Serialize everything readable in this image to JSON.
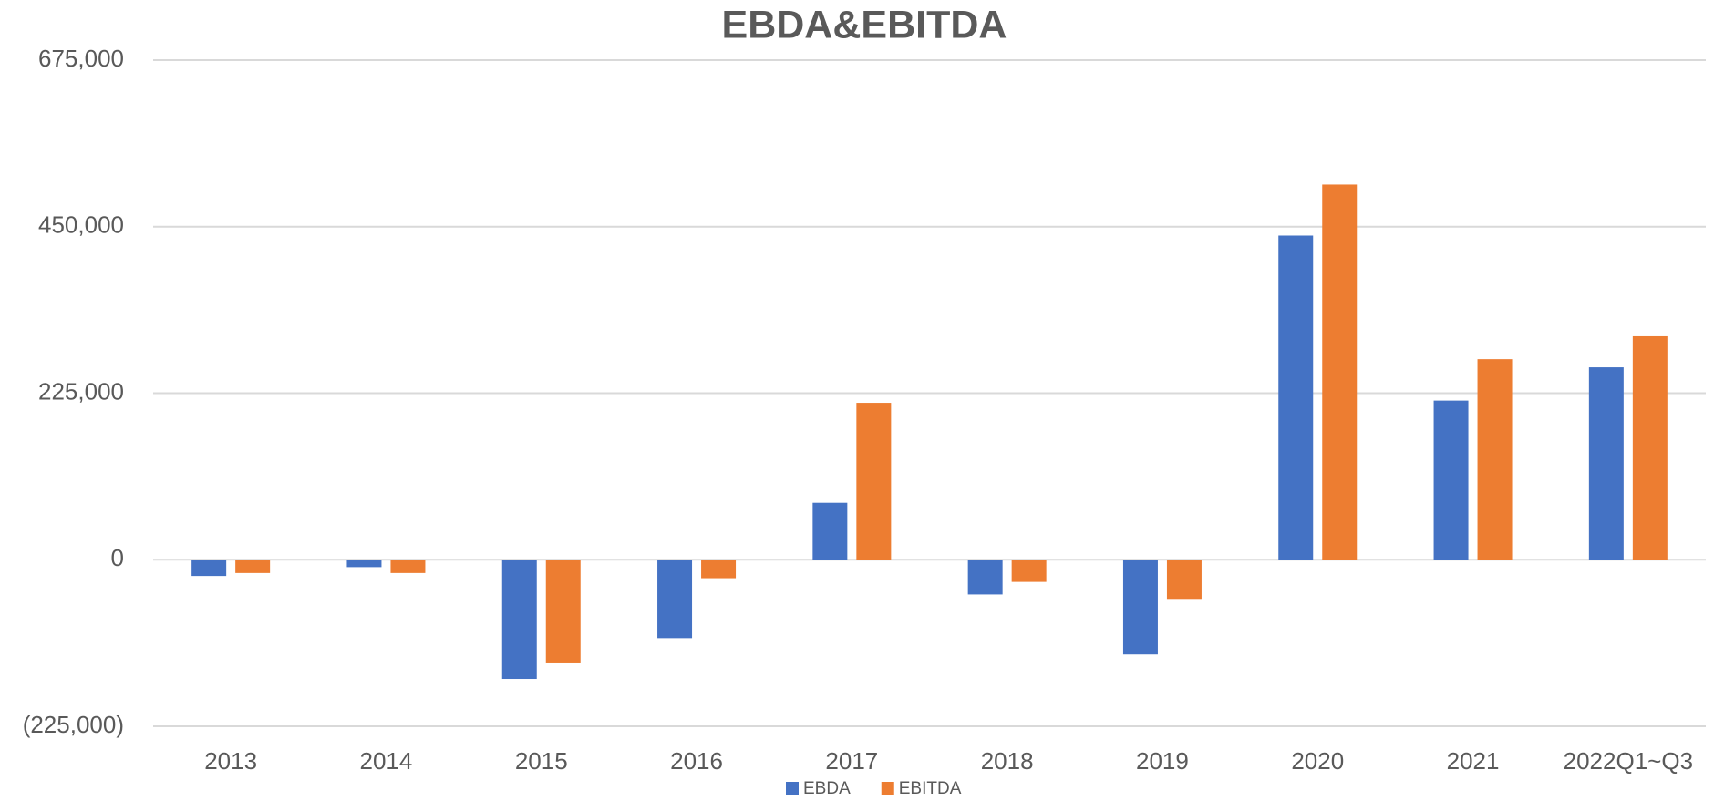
{
  "chart_data": {
    "type": "bar",
    "title": "EBDA&EBITDA",
    "categories": [
      "2013",
      "2014",
      "2015",
      "2016",
      "2017",
      "2018",
      "2019",
      "2020",
      "2021",
      "2022Q1~Q3"
    ],
    "series": [
      {
        "name": "EBDA",
        "color": "#4472c4",
        "values": [
          -22000,
          -10000,
          -161000,
          -106000,
          77000,
          -47000,
          -128000,
          438000,
          215000,
          260000
        ]
      },
      {
        "name": "EBITDA",
        "color": "#ed7d31",
        "values": [
          -18000,
          -18000,
          -140000,
          -25000,
          212000,
          -30000,
          -53000,
          507000,
          271000,
          302000
        ]
      }
    ],
    "ylim": [
      -225000,
      675000
    ],
    "yticks": [
      {
        "value": -225000,
        "label": "(225,000)"
      },
      0,
      {
        "value": 225000,
        "label": "225,000"
      },
      {
        "value": 450000,
        "label": "450,000"
      },
      {
        "value": 675000,
        "label": "675,000"
      }
    ],
    "grid": true,
    "legend": "bottom"
  }
}
